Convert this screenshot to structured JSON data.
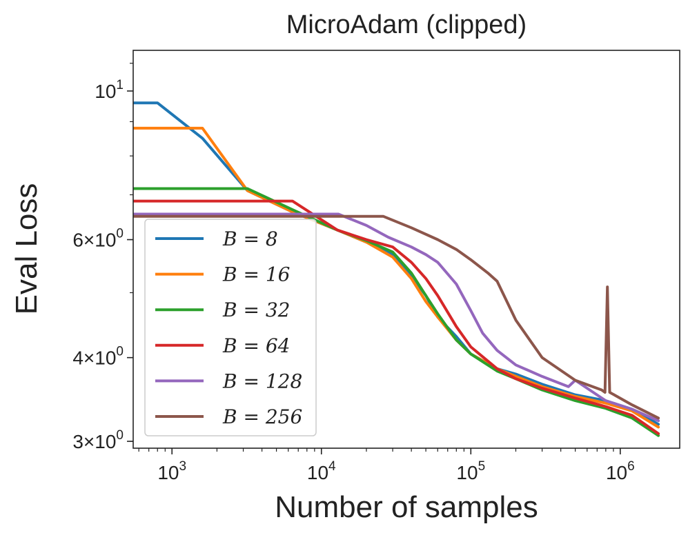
{
  "chart_data": {
    "type": "line",
    "title": "MicroAdam (clipped)",
    "xlabel": "Number of samples",
    "ylabel": "Eval Loss",
    "xscale": "log",
    "yscale": "log",
    "xlim": [
      550,
      2500000
    ],
    "ylim": [
      2.93,
      11.5
    ],
    "x_ticks": [
      {
        "value": 1000,
        "base": "10",
        "exp": "3"
      },
      {
        "value": 10000,
        "base": "10",
        "exp": "4"
      },
      {
        "value": 100000,
        "base": "10",
        "exp": "5"
      },
      {
        "value": 1000000,
        "base": "10",
        "exp": "6"
      }
    ],
    "y_ticks": [
      {
        "value": 10,
        "mant": "",
        "base": "10",
        "exp": "1"
      },
      {
        "value": 6,
        "mant": "6×",
        "base": "10",
        "exp": "0"
      },
      {
        "value": 4,
        "mant": "4×",
        "base": "10",
        "exp": "0"
      },
      {
        "value": 3,
        "mant": "3×",
        "base": "10",
        "exp": "0"
      }
    ],
    "legend_position": "lower-left",
    "series": [
      {
        "name": "B = 8",
        "color": "#1f77b4",
        "x": [
          550,
          800,
          1600,
          3200,
          6400,
          12800,
          20000,
          30000,
          40000,
          50000,
          60000,
          80000,
          100000,
          150000,
          200000,
          300000,
          500000,
          800000,
          1200000,
          1800000
        ],
        "y": [
          9.6,
          9.6,
          8.5,
          7.1,
          6.6,
          6.2,
          5.95,
          5.7,
          5.3,
          4.95,
          4.6,
          4.3,
          4.05,
          3.85,
          3.78,
          3.65,
          3.52,
          3.45,
          3.35,
          3.18
        ]
      },
      {
        "name": "B = 16",
        "color": "#ff7f0e",
        "x": [
          550,
          1600,
          3200,
          6400,
          12800,
          20000,
          30000,
          40000,
          50000,
          60000,
          80000,
          100000,
          150000,
          200000,
          300000,
          500000,
          800000,
          1200000,
          1800000
        ],
        "y": [
          8.8,
          8.8,
          7.1,
          6.6,
          6.2,
          5.95,
          5.65,
          5.25,
          4.85,
          4.6,
          4.25,
          4.05,
          3.85,
          3.75,
          3.62,
          3.5,
          3.42,
          3.33,
          3.15
        ]
      },
      {
        "name": "B = 32",
        "color": "#2ca02c",
        "x": [
          550,
          3200,
          6400,
          12800,
          20000,
          30000,
          40000,
          50000,
          60000,
          80000,
          100000,
          150000,
          200000,
          300000,
          500000,
          800000,
          1200000,
          1800000
        ],
        "y": [
          7.15,
          7.15,
          6.65,
          6.2,
          5.98,
          5.75,
          5.35,
          4.95,
          4.65,
          4.25,
          4.05,
          3.82,
          3.72,
          3.58,
          3.45,
          3.36,
          3.25,
          3.06
        ]
      },
      {
        "name": "B = 64",
        "color": "#d62728",
        "x": [
          550,
          6400,
          12800,
          20000,
          30000,
          40000,
          50000,
          60000,
          80000,
          100000,
          150000,
          200000,
          300000,
          500000,
          800000,
          1200000,
          1800000
        ],
        "y": [
          6.85,
          6.85,
          6.2,
          6.0,
          5.85,
          5.55,
          5.25,
          4.95,
          4.45,
          4.15,
          3.85,
          3.72,
          3.6,
          3.48,
          3.38,
          3.28,
          3.08
        ]
      },
      {
        "name": "B = 128",
        "color": "#9467bd",
        "x": [
          550,
          13000,
          20000,
          28000,
          40000,
          50000,
          60000,
          80000,
          100000,
          120000,
          150000,
          200000,
          300000,
          450000,
          500000,
          800000,
          1200000,
          1800000
        ],
        "y": [
          6.55,
          6.55,
          6.3,
          6.05,
          5.85,
          5.7,
          5.55,
          5.15,
          4.7,
          4.35,
          4.1,
          3.9,
          3.75,
          3.62,
          3.7,
          3.45,
          3.35,
          3.22
        ]
      },
      {
        "name": "B = 256",
        "color": "#8c564b",
        "x": [
          550,
          26000,
          40000,
          60000,
          80000,
          100000,
          130000,
          150000,
          200000,
          300000,
          500000,
          750000,
          790000,
          820000,
          850000,
          1200000,
          1800000
        ],
        "y": [
          6.5,
          6.5,
          6.25,
          6.0,
          5.8,
          5.6,
          5.35,
          5.2,
          4.55,
          4.0,
          3.7,
          3.58,
          3.55,
          5.1,
          3.55,
          3.4,
          3.25
        ]
      }
    ]
  }
}
